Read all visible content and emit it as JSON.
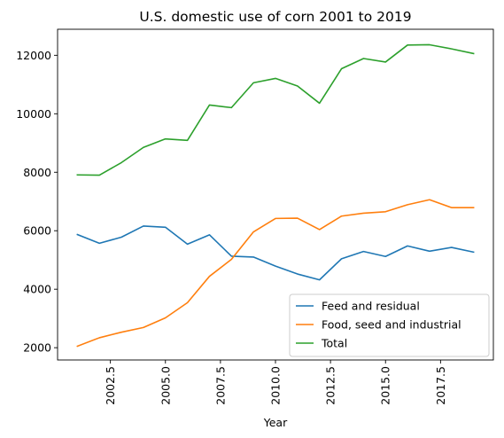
{
  "chart_data": {
    "type": "line",
    "title": "U.S. domestic use of corn 2001 to 2019",
    "xlabel": "Year",
    "ylabel": "",
    "x": [
      2001,
      2002,
      2003,
      2004,
      2005,
      2006,
      2007,
      2008,
      2009,
      2010,
      2011,
      2012,
      2013,
      2014,
      2015,
      2016,
      2017,
      2018,
      2019
    ],
    "xlim": [
      2000.1,
      2019.9
    ],
    "ylim": [
      1580,
      12890
    ],
    "x_ticks": [
      2002.5,
      2005.0,
      2007.5,
      2010.0,
      2012.5,
      2015.0,
      2017.5
    ],
    "x_tick_labels": [
      "2002.5",
      "2005.0",
      "2007.5",
      "2010.0",
      "2012.5",
      "2015.0",
      "2017.5"
    ],
    "y_ticks": [
      2000,
      4000,
      6000,
      8000,
      10000,
      12000
    ],
    "y_tick_labels": [
      "2000",
      "4000",
      "6000",
      "8000",
      "10000",
      "12000"
    ],
    "grid": false,
    "legend_position": "lower-right",
    "series": [
      {
        "name": "Feed and residual",
        "color": "#1f77b4",
        "values": [
          5870,
          5570,
          5780,
          6160,
          6120,
          5540,
          5860,
          5130,
          5100,
          4790,
          4520,
          4320,
          5040,
          5290,
          5120,
          5480,
          5300,
          5430,
          5270
        ]
      },
      {
        "name": "Food, seed and industrial",
        "color": "#ff7f0e",
        "values": [
          2050,
          2340,
          2530,
          2690,
          3020,
          3540,
          4440,
          5020,
          5960,
          6420,
          6430,
          6040,
          6500,
          6600,
          6650,
          6890,
          7060,
          6790,
          6790
        ]
      },
      {
        "name": "Total",
        "color": "#2ca02c",
        "values": [
          7910,
          7900,
          8330,
          8850,
          9140,
          9090,
          10300,
          10210,
          11060,
          11210,
          10950,
          10360,
          11540,
          11890,
          11770,
          12350,
          12360,
          12220,
          12060
        ]
      }
    ]
  }
}
